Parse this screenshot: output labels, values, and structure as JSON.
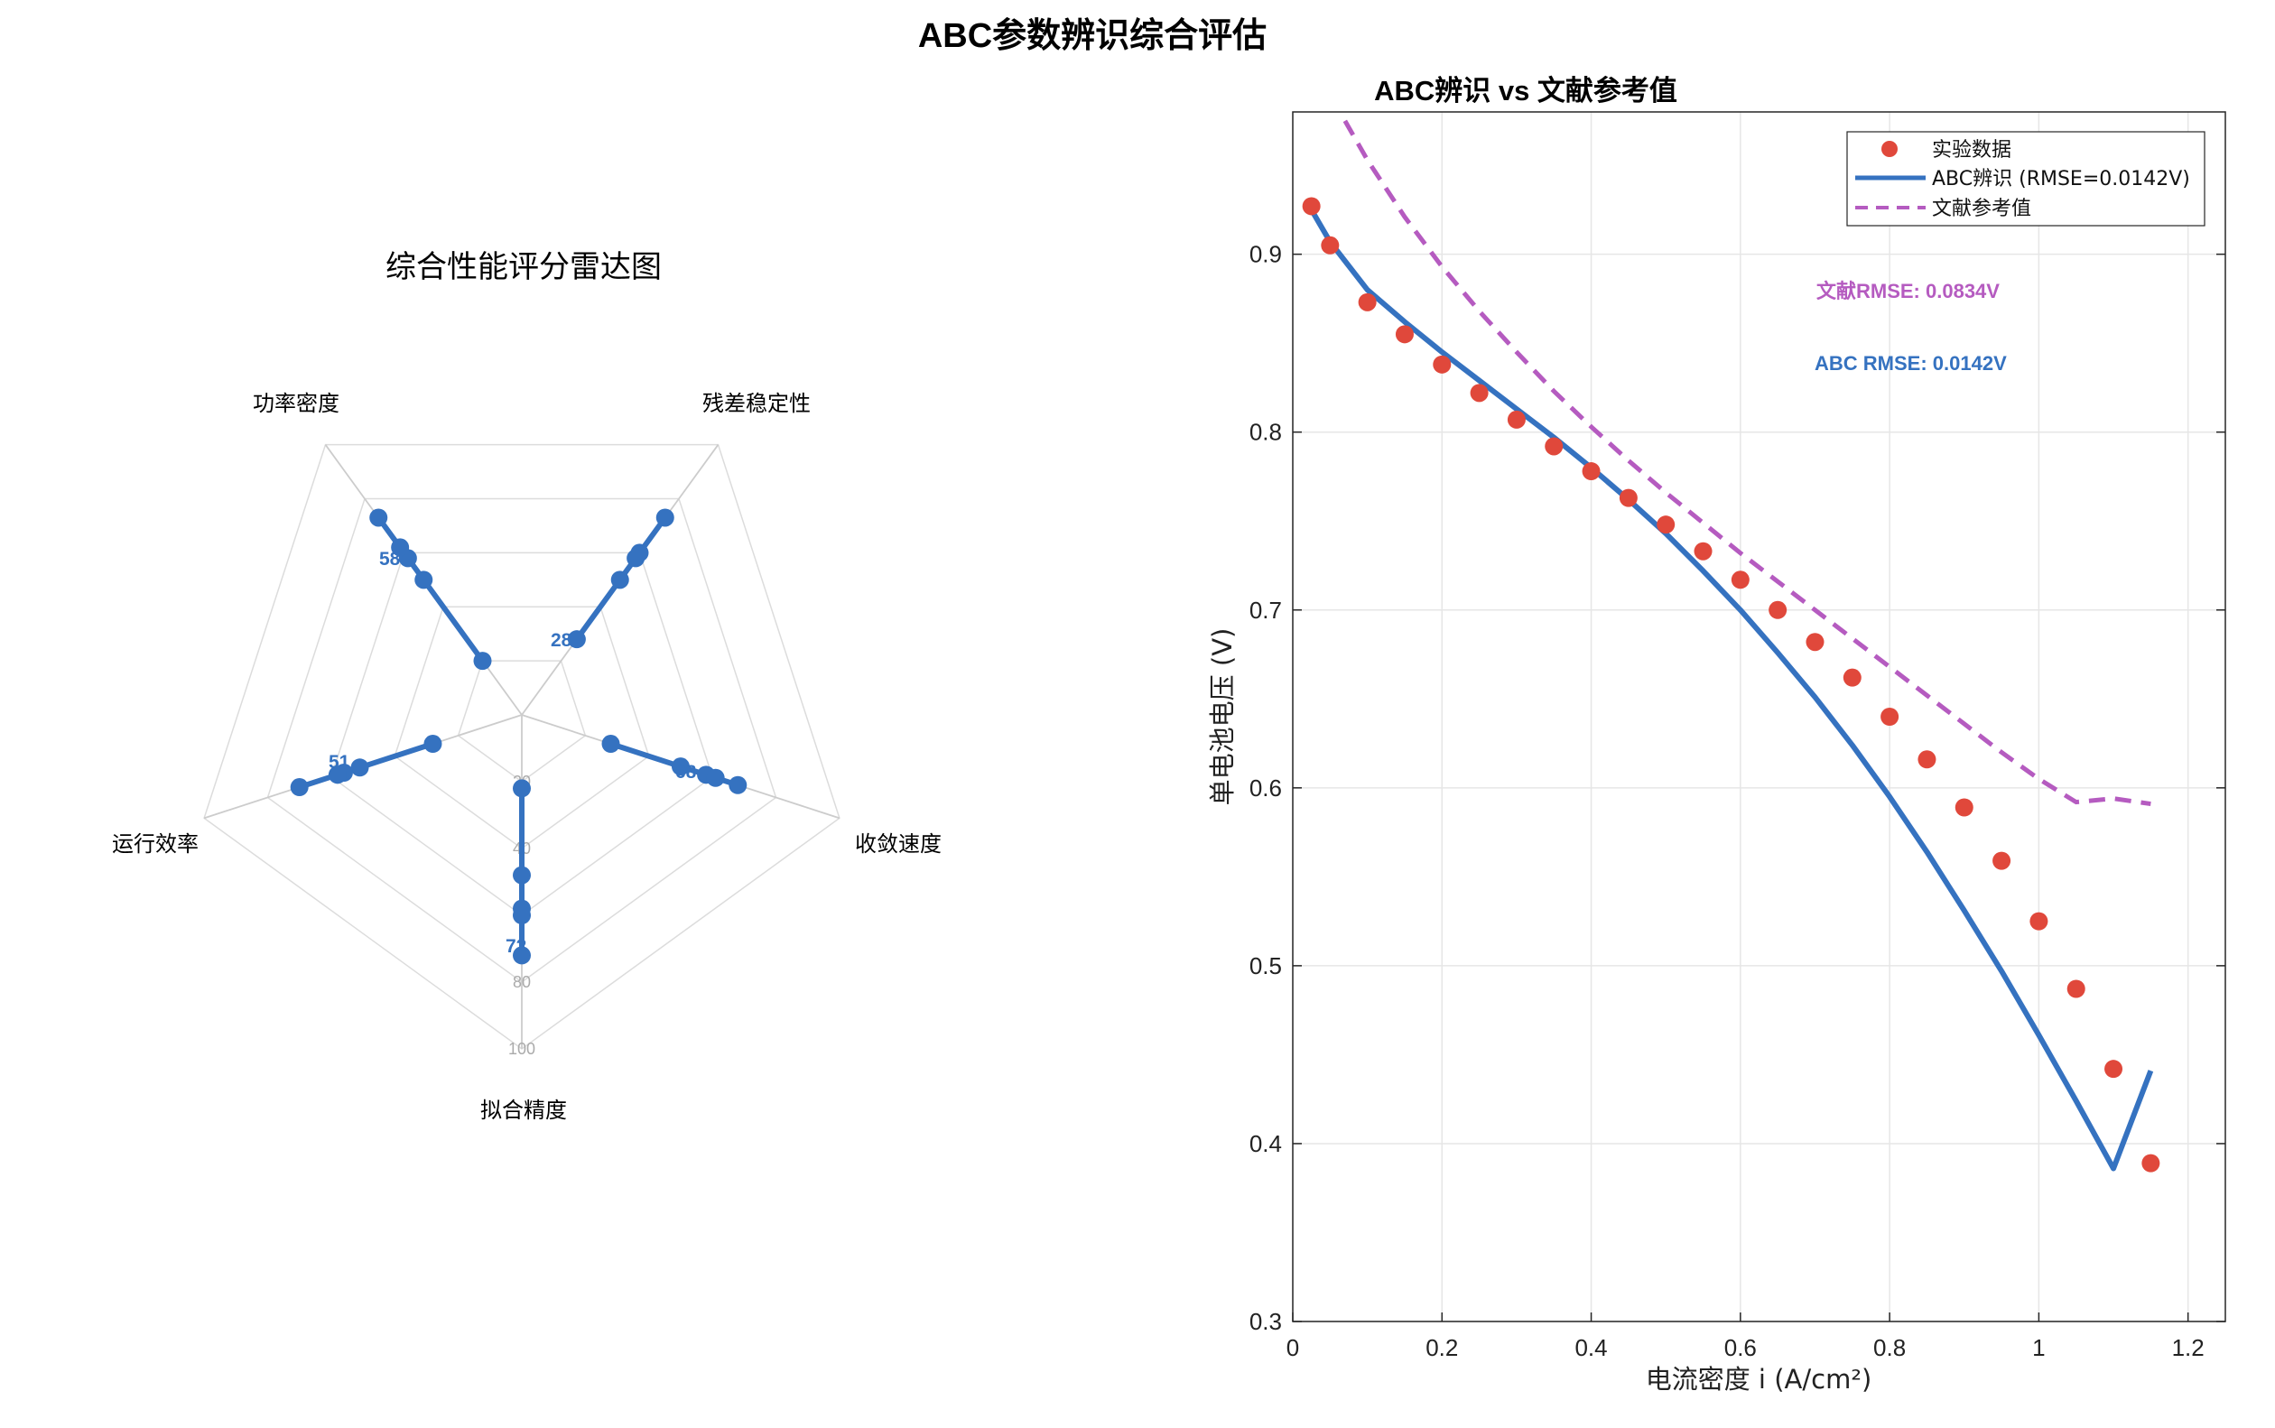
{
  "figure": {
    "title": "ABC参数辨识综合评估"
  },
  "chart_data": [
    {
      "type": "radar",
      "title": "综合性能评分雷达图",
      "axes": [
        "功率密度",
        "残差稳定性",
        "收敛速度",
        "拟合精度",
        "运行效率"
      ],
      "ring_ticks": [
        "20",
        "40",
        "60",
        "80",
        "100"
      ],
      "rlim": [
        0,
        100
      ],
      "point_labels": [
        "58",
        "28",
        "68",
        "72",
        "51"
      ],
      "values": {
        "功率密度": [
          20,
          50,
          58,
          62,
          73
        ],
        "残差稳定性": [
          28,
          50,
          58,
          60,
          73
        ],
        "收敛速度": [
          28,
          50,
          58,
          61,
          68
        ],
        "拟合精度": [
          22,
          48,
          58,
          60,
          72
        ],
        "运行效率": [
          28,
          51,
          56,
          58,
          70
        ]
      },
      "color": "#3572c0"
    },
    {
      "type": "line",
      "title": "ABC辨识 vs 文献参考值",
      "xlabel": "电流密度 i (A/cm²)",
      "ylabel": "单电池电压 (V)",
      "xlim": [
        0,
        1.25
      ],
      "ylim": [
        0.3,
        0.98
      ],
      "xticks": [
        "0",
        "0.2",
        "0.4",
        "0.6",
        "0.8",
        "1",
        "1.2"
      ],
      "yticks": [
        "0.3",
        "0.4",
        "0.5",
        "0.6",
        "0.7",
        "0.8",
        "0.9"
      ],
      "grid": true,
      "legend_position": "top-right",
      "series": [
        {
          "name": "实验数据",
          "kind": "scatter",
          "color": "#e0483b",
          "x": [
            0.025,
            0.05,
            0.1,
            0.15,
            0.2,
            0.25,
            0.3,
            0.35,
            0.4,
            0.45,
            0.5,
            0.55,
            0.6,
            0.65,
            0.7,
            0.75,
            0.8,
            0.85,
            0.9,
            0.95,
            1.0,
            1.05,
            1.1,
            1.15
          ],
          "y": [
            0.927,
            0.905,
            0.873,
            0.855,
            0.838,
            0.822,
            0.807,
            0.792,
            0.778,
            0.763,
            0.748,
            0.733,
            0.717,
            0.7,
            0.682,
            0.662,
            0.64,
            0.616,
            0.589,
            0.559,
            0.525,
            0.487,
            0.442,
            0.389
          ]
        },
        {
          "name": "ABC辨识 (RMSE=0.0142V)",
          "kind": "line",
          "color": "#3572c0",
          "x": [
            0.025,
            0.05,
            0.1,
            0.15,
            0.2,
            0.25,
            0.3,
            0.35,
            0.4,
            0.45,
            0.5,
            0.55,
            0.6,
            0.65,
            0.7,
            0.75,
            0.8,
            0.85,
            0.9,
            0.95,
            1.0,
            1.05,
            1.1,
            1.15
          ],
          "y": [
            0.925,
            0.907,
            0.88,
            0.862,
            0.845,
            0.829,
            0.813,
            0.797,
            0.78,
            0.762,
            0.743,
            0.722,
            0.7,
            0.676,
            0.651,
            0.624,
            0.595,
            0.564,
            0.531,
            0.497,
            0.461,
            0.424,
            0.386,
            0.441
          ]
        },
        {
          "name": "文献参考值",
          "kind": "dashed",
          "color": "#b55bc0",
          "x": [
            0.07,
            0.1,
            0.15,
            0.2,
            0.25,
            0.3,
            0.35,
            0.4,
            0.45,
            0.5,
            0.55,
            0.6,
            0.65,
            0.7,
            0.75,
            0.8,
            0.85,
            0.9,
            0.95,
            1.0,
            1.05,
            1.1,
            1.15
          ],
          "y": [
            0.975,
            0.953,
            0.921,
            0.893,
            0.868,
            0.845,
            0.823,
            0.803,
            0.784,
            0.766,
            0.749,
            0.732,
            0.716,
            0.7,
            0.684,
            0.668,
            0.652,
            0.636,
            0.62,
            0.605,
            0.592,
            0.594,
            0.591
          ]
        }
      ],
      "annotations": [
        {
          "text": "文献RMSE: 0.0834V",
          "color": "#b55bc0"
        },
        {
          "text": "ABC RMSE: 0.0142V",
          "color": "#3572c0"
        }
      ]
    }
  ]
}
